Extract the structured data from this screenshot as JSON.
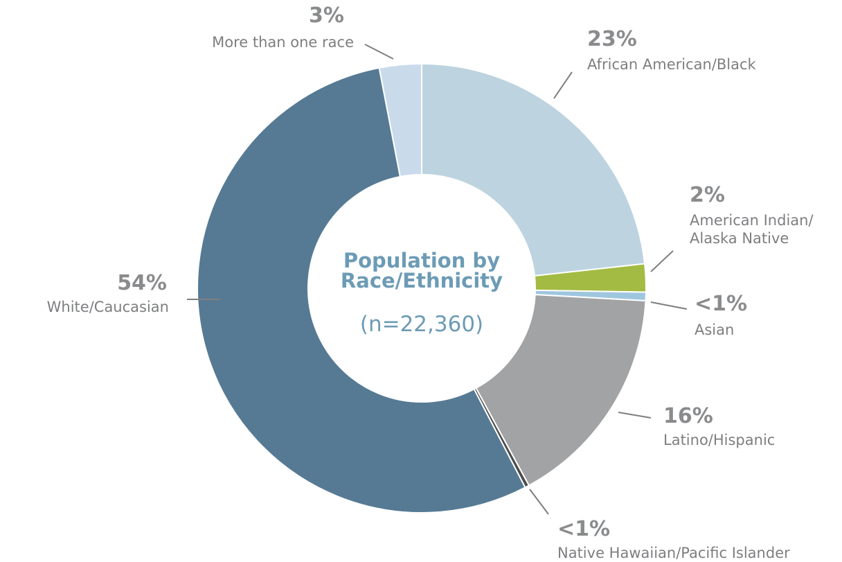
{
  "chart_data": {
    "type": "donut",
    "title": "Population by Race/Ethnicity",
    "subtitle": "(n=22,360)",
    "categories": [
      "African American/Black",
      "American Indian/ Alaska Native",
      "Asian",
      "Latino/Hispanic",
      "Native Hawaiian/Pacific Islander",
      "White/Caucasian",
      "More than one race"
    ],
    "values": [
      23,
      2,
      0.6,
      16,
      0.3,
      54,
      3
    ],
    "value_labels": [
      "23%",
      "2%",
      "<1%",
      "16%",
      "<1%",
      "54%",
      "3%"
    ],
    "colors": [
      "#bdd3e0",
      "#a3bb42",
      "#9fc6df",
      "#a2a3a5",
      "#4d4d4d",
      "#567a94",
      "#c9daeb"
    ]
  }
}
